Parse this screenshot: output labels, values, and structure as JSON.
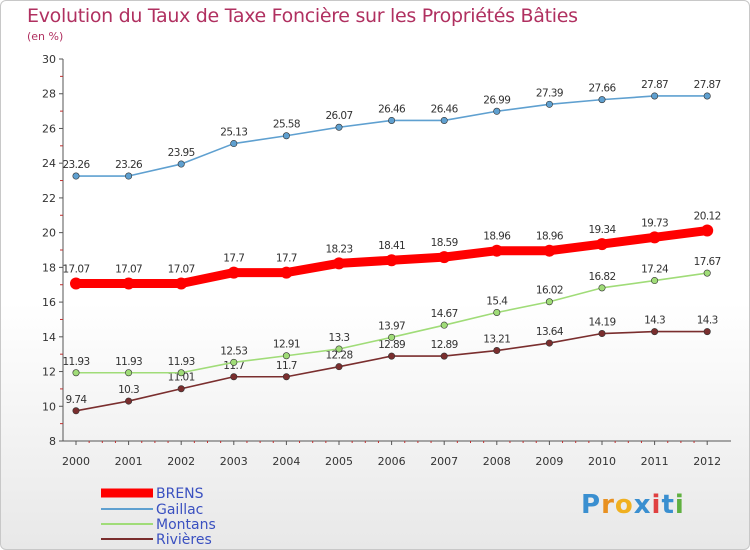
{
  "chart_data": {
    "type": "line",
    "title": "Evolution du Taux de Taxe Foncière sur les Propriétés Bâties",
    "subtitle": "(en %)",
    "x": [
      "2000",
      "2001",
      "2002",
      "2003",
      "2004",
      "2005",
      "2006",
      "2007",
      "2008",
      "2009",
      "2010",
      "2011",
      "2012"
    ],
    "yticks": [
      "8",
      "10",
      "12",
      "14",
      "16",
      "18",
      "20",
      "22",
      "24",
      "26",
      "28",
      "30"
    ],
    "ylim": [
      8,
      30
    ],
    "grid": false,
    "legend_position": "bottom-left",
    "series": [
      {
        "name": "BRENS",
        "color": "#ff0000",
        "values": [
          17.07,
          17.07,
          17.07,
          17.7,
          17.7,
          18.23,
          18.41,
          18.59,
          18.96,
          18.96,
          19.34,
          19.73,
          20.12
        ],
        "labels": [
          "17.07",
          "17.07",
          "17.07",
          "17.7",
          "17.7",
          "18.23",
          "18.41",
          "18.59",
          "18.96",
          "18.96",
          "19.34",
          "19.73",
          "20.12"
        ]
      },
      {
        "name": "Gaillac",
        "color": "#5fa0d0",
        "values": [
          23.26,
          23.26,
          23.95,
          25.13,
          25.58,
          26.07,
          26.46,
          26.46,
          26.99,
          27.39,
          27.66,
          27.87,
          27.87
        ],
        "labels": [
          "23.26",
          "23.26",
          "23.95",
          "25.13",
          "25.58",
          "26.07",
          "26.46",
          "26.46",
          "26.99",
          "27.39",
          "27.66",
          "27.87",
          "27.87"
        ]
      },
      {
        "name": "Montans",
        "color": "#a0dc78",
        "values": [
          11.93,
          11.93,
          11.93,
          12.53,
          12.91,
          13.3,
          13.97,
          14.67,
          15.4,
          16.02,
          16.82,
          17.24,
          17.67
        ],
        "labels": [
          "11.93",
          "11.93",
          "11.93",
          "12.53",
          "12.91",
          "13.3",
          "13.97",
          "14.67",
          "15.4",
          "16.02",
          "16.82",
          "17.24",
          "17.67"
        ]
      },
      {
        "name": "Rivières",
        "color": "#7a2e2e",
        "values": [
          9.74,
          10.3,
          11.01,
          11.7,
          11.7,
          12.28,
          12.89,
          12.89,
          13.21,
          13.64,
          14.19,
          14.3,
          14.3
        ],
        "labels": [
          "9.74",
          "10.3",
          "11.01",
          "11.7",
          "11.7",
          "12.28",
          "12.89",
          "12.89",
          "13.21",
          "13.64",
          "14.19",
          "14.3",
          "14.3"
        ]
      }
    ]
  },
  "logo": {
    "letters": [
      "P",
      "r",
      "o",
      "x",
      "i",
      "t",
      "i"
    ],
    "colors": [
      "#3a8fd0",
      "#e89020",
      "#f0b020",
      "#3a8fd0",
      "#e04040",
      "#3a8fd0",
      "#60b040"
    ]
  }
}
